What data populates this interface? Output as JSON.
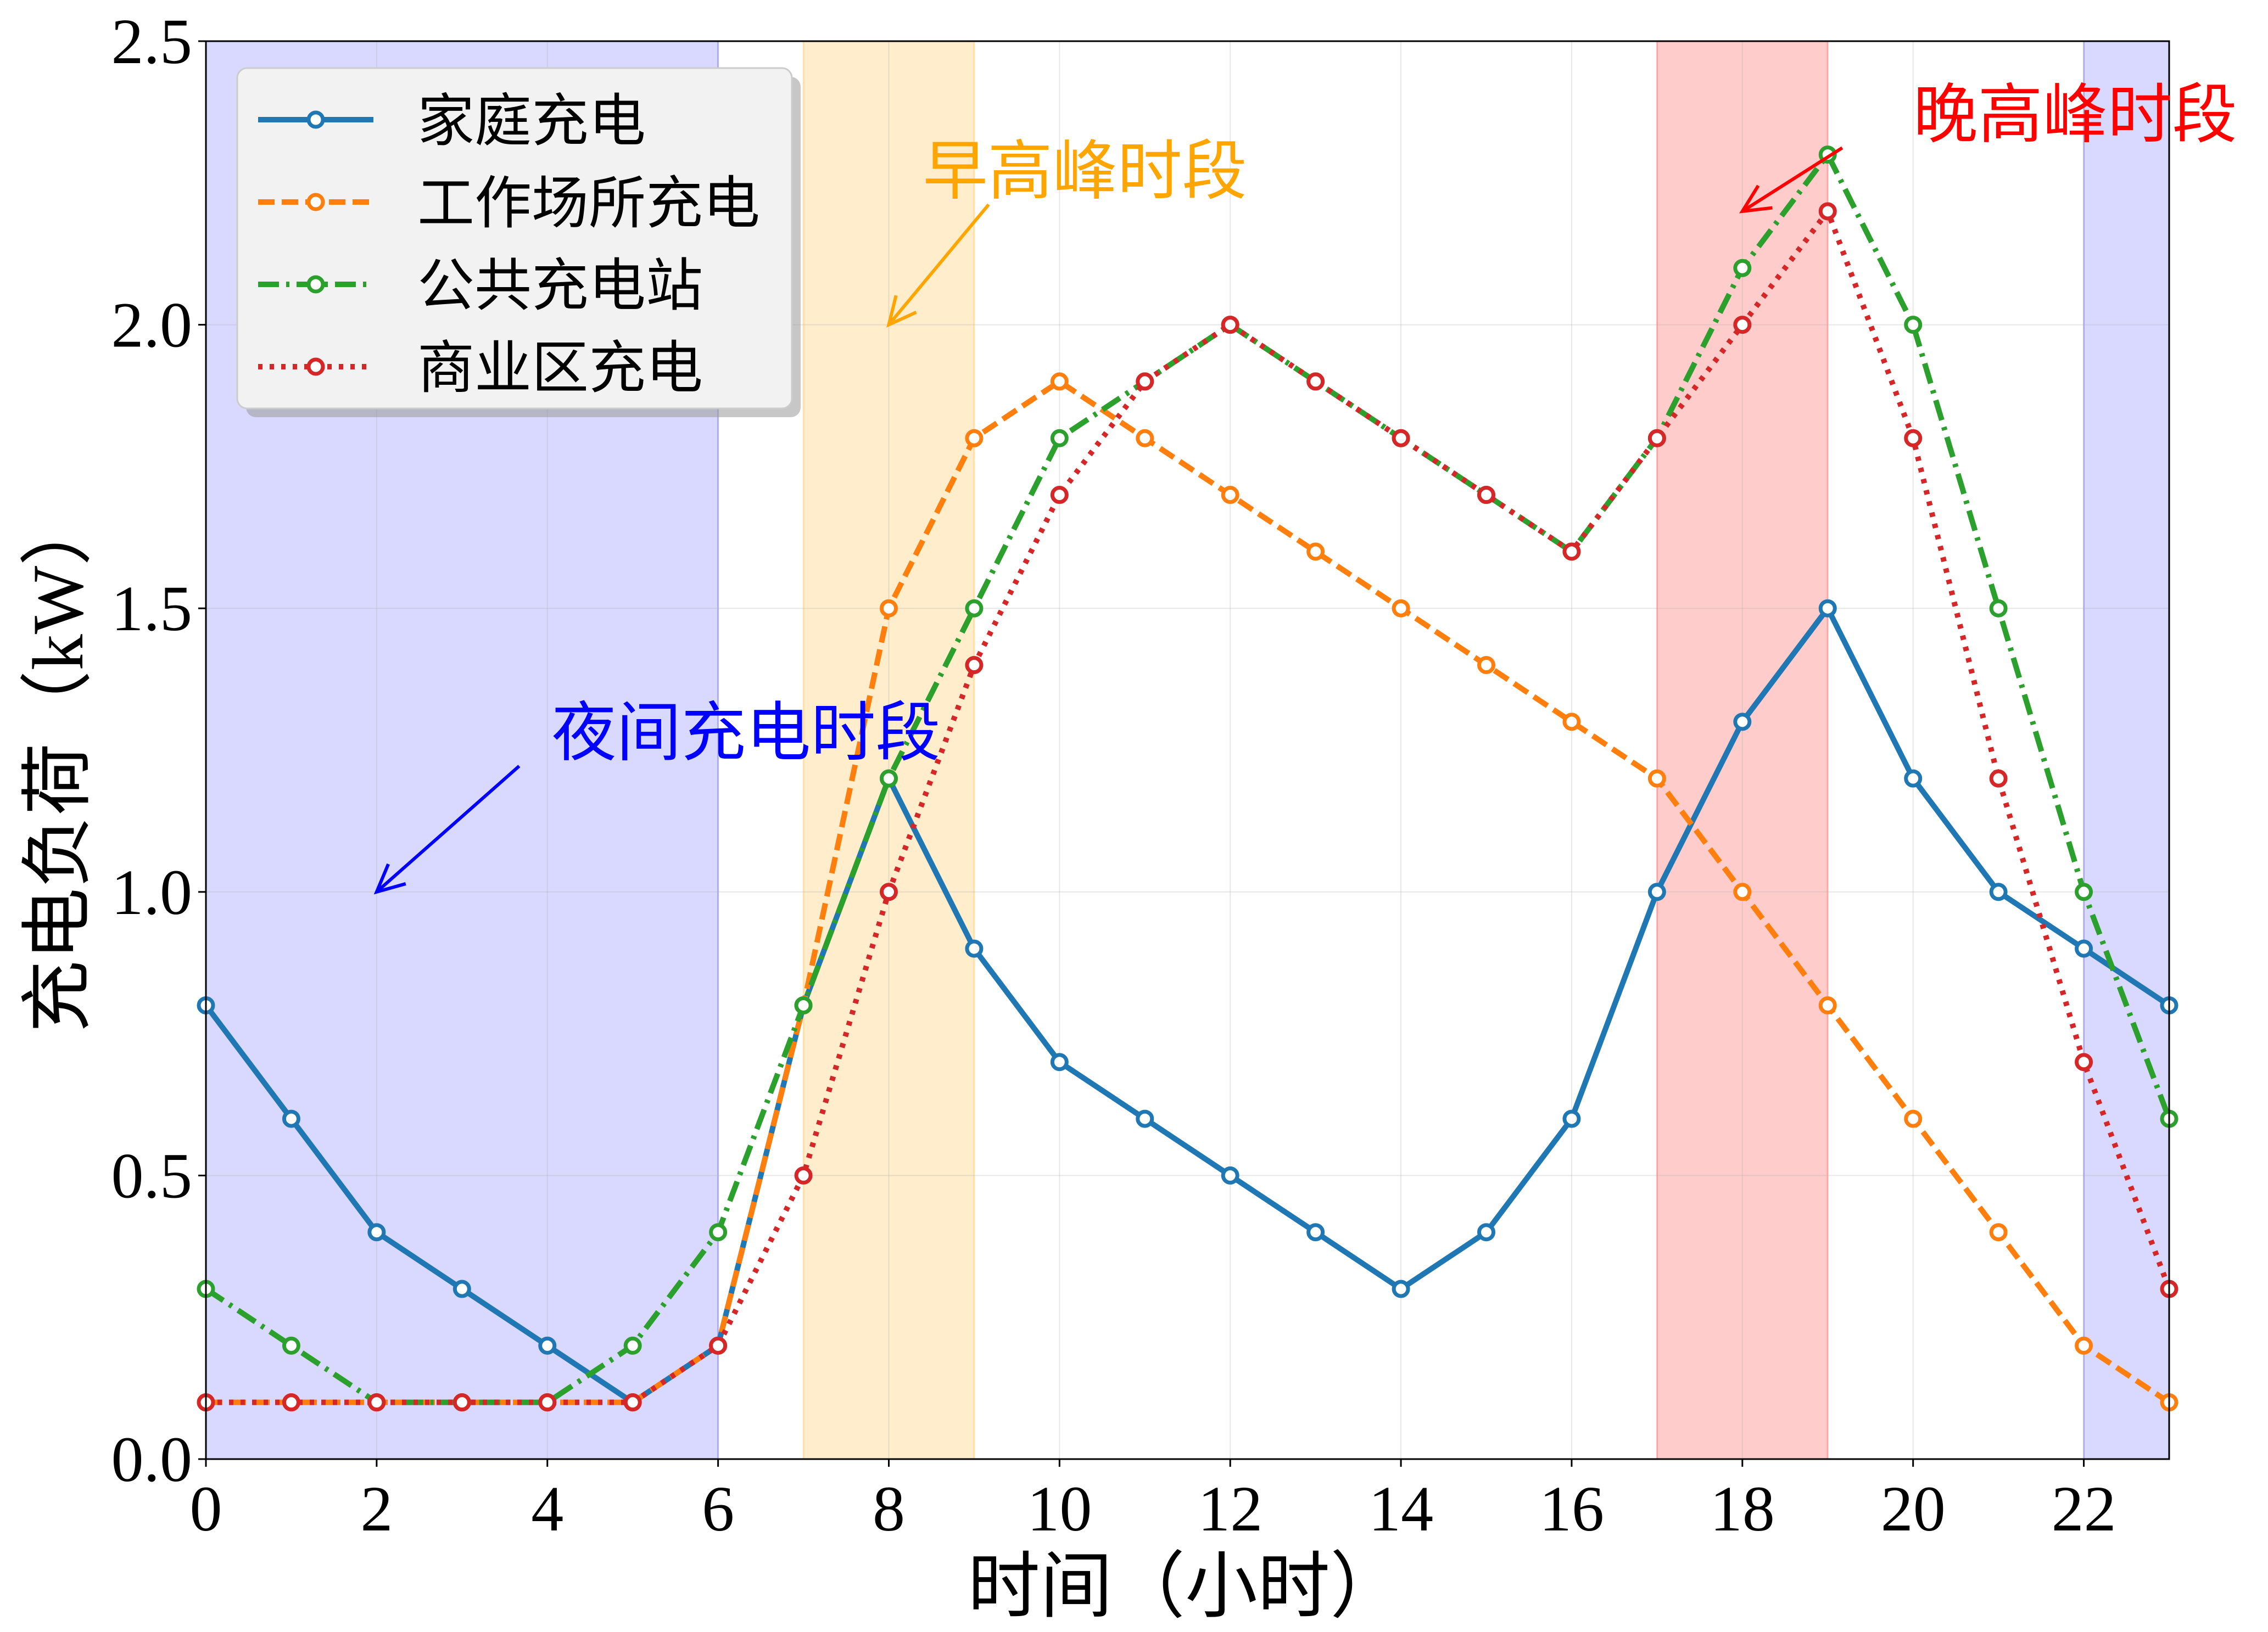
{
  "chart_data": {
    "type": "line",
    "title": "",
    "xlabel": "时间（小时）",
    "ylabel": "充电负荷（kW）",
    "xlim": [
      0,
      23
    ],
    "ylim": [
      0,
      2.5
    ],
    "xticks": [
      0,
      2,
      4,
      6,
      8,
      10,
      12,
      14,
      16,
      18,
      20,
      22
    ],
    "yticks": [
      0.0,
      0.5,
      1.0,
      1.5,
      2.0,
      2.5
    ],
    "grid": true,
    "legend_position": "top-left",
    "x": [
      0,
      1,
      2,
      3,
      4,
      5,
      6,
      7,
      8,
      9,
      10,
      11,
      12,
      13,
      14,
      15,
      16,
      17,
      18,
      19,
      20,
      21,
      22,
      23
    ],
    "series": [
      {
        "name": "家庭充电",
        "color": "#1f77b4",
        "style": "solid",
        "values": [
          0.8,
          0.6,
          0.4,
          0.3,
          0.2,
          0.1,
          0.2,
          0.8,
          1.2,
          0.9,
          0.7,
          0.6,
          0.5,
          0.4,
          0.3,
          0.4,
          0.6,
          1.0,
          1.3,
          1.5,
          1.2,
          1.0,
          0.9,
          0.8
        ]
      },
      {
        "name": "工作场所充电",
        "color": "#ff7f0e",
        "style": "dashed",
        "values": [
          0.1,
          0.1,
          0.1,
          0.1,
          0.1,
          0.1,
          0.2,
          0.8,
          1.5,
          1.8,
          1.9,
          1.8,
          1.7,
          1.6,
          1.5,
          1.4,
          1.3,
          1.2,
          1.0,
          0.8,
          0.6,
          0.4,
          0.2,
          0.1
        ]
      },
      {
        "name": "公共充电站",
        "color": "#2ca02c",
        "style": "dashdot",
        "values": [
          0.3,
          0.2,
          0.1,
          0.1,
          0.1,
          0.2,
          0.4,
          0.8,
          1.2,
          1.5,
          1.8,
          1.9,
          2.0,
          1.9,
          1.8,
          1.7,
          1.6,
          1.8,
          2.1,
          2.3,
          2.0,
          1.5,
          1.0,
          0.6
        ]
      },
      {
        "name": "商业区充电",
        "color": "#d62728",
        "style": "dotted",
        "values": [
          0.1,
          0.1,
          0.1,
          0.1,
          0.1,
          0.1,
          0.2,
          0.5,
          1.0,
          1.4,
          1.7,
          1.9,
          2.0,
          1.9,
          1.8,
          1.7,
          1.6,
          1.8,
          2.0,
          2.2,
          1.8,
          1.2,
          0.7,
          0.3
        ]
      }
    ],
    "shaded_regions": [
      {
        "name": "night-1",
        "x0": 0,
        "x1": 6,
        "color": "#0000ff",
        "opacity": 0.15
      },
      {
        "name": "morning-peak",
        "x0": 7,
        "x1": 9,
        "color": "#ffa500",
        "opacity": 0.2
      },
      {
        "name": "evening-peak",
        "x0": 17,
        "x1": 19,
        "color": "#ff0000",
        "opacity": 0.2
      },
      {
        "name": "night-2",
        "x0": 22,
        "x1": 23,
        "color": "#0000ff",
        "opacity": 0.15
      }
    ],
    "annotations": [
      {
        "name": "morning-peak-annotation",
        "text": "早高峰时段",
        "color": "#ffa500",
        "text_x": 8.4,
        "text_y": 2.27,
        "arrow_from": [
          11.1,
          2.27
        ],
        "arrow_to": [
          8.0,
          2.0
        ]
      },
      {
        "name": "evening-peak-annotation",
        "text": "晚高峰时段",
        "color": "#ff0000",
        "text_x": 20.0,
        "text_y": 2.37,
        "arrow_from": [
          21.1,
          2.37
        ],
        "arrow_to": [
          18.0,
          2.2
        ]
      },
      {
        "name": "night-annotation",
        "text": "夜间充电时段",
        "color": "#0000ff",
        "text_x": 4.05,
        "text_y": 1.28,
        "arrow_from": [
          5.6,
          1.28
        ],
        "arrow_to": [
          2.0,
          1.0
        ]
      }
    ]
  }
}
